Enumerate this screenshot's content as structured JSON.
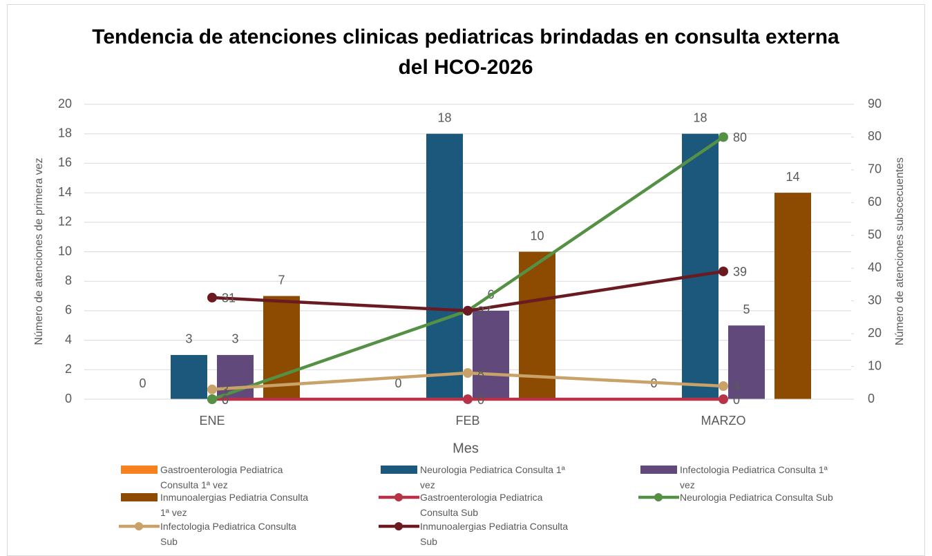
{
  "chart_data": {
    "type": "bar-line",
    "title": "Tendencia de atenciones clinicas pediatricas brindadas en consulta externa del HCO-2026",
    "x_label": "Mes",
    "y_label": "Número de atenciones de primera vez",
    "y2_label": "Número de atenciones subscecuentes",
    "categories": [
      "ENE",
      "FEB",
      "MARZO"
    ],
    "ylim": [
      0,
      20
    ],
    "yticks": [
      0,
      2,
      4,
      6,
      8,
      10,
      12,
      14,
      16,
      18,
      20
    ],
    "y2lim": [
      0,
      90
    ],
    "y2ticks": [
      0,
      10,
      20,
      30,
      40,
      50,
      60,
      70,
      80,
      90
    ],
    "series": [
      {
        "name": "Gastroenterologia Pediatrica Consulta 1ª vez",
        "type": "bar",
        "color": "#f5821f",
        "values": [
          0,
          0,
          0
        ]
      },
      {
        "name": "Neurologia Pediatrica Consulta 1ª vez",
        "type": "bar",
        "color": "#1b587c",
        "values": [
          3,
          18,
          18
        ]
      },
      {
        "name": "Infectologia Pediatrica Consulta 1ª vez",
        "type": "bar",
        "color": "#614a7b",
        "values": [
          3,
          6,
          5
        ]
      },
      {
        "name": "Inmunoalergias Pediatria Consulta 1ª vez",
        "type": "bar",
        "color": "#8c4b00",
        "values": [
          7,
          10,
          14
        ]
      },
      {
        "name": "Gastroenterologia Pediatrica Consulta Sub",
        "type": "line",
        "axis": "y2",
        "color": "#b83248",
        "values": [
          0,
          0,
          0
        ]
      },
      {
        "name": "Neurologia Pediatrica Consulta Sub",
        "type": "line",
        "axis": "y2",
        "color": "#559145",
        "values": [
          0,
          27,
          80
        ]
      },
      {
        "name": "Infectologia Pediatrica Consulta Sub",
        "type": "line",
        "axis": "y2",
        "color": "#c9a26a",
        "values": [
          3,
          8,
          4
        ]
      },
      {
        "name": "Inmunoalergias Pediatria Consulta Sub",
        "type": "line",
        "axis": "y2",
        "color": "#6b1a22",
        "values": [
          31,
          27,
          39
        ]
      }
    ]
  }
}
